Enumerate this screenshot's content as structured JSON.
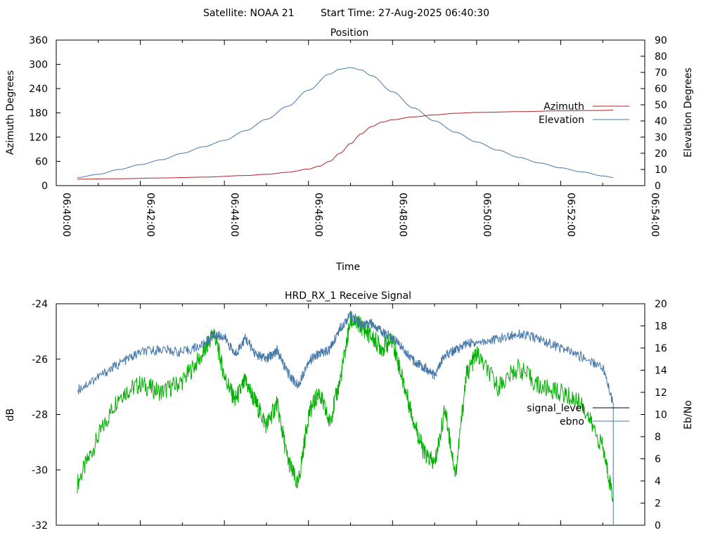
{
  "header": {
    "satellite_label": "Satellite: NOAA 21",
    "start_time_label": "Start Time: 27-Aug-2025 06:40:30"
  },
  "colors": {
    "azimuth": "#b22222",
    "elevation": "#4477aa",
    "signal_level": "#00b000",
    "ebno": "#4477aa",
    "legend_signal": "#000000"
  },
  "chart_data": [
    {
      "type": "line",
      "title": "Position",
      "xlabel": "Time",
      "ylabel": "Azimuth Degrees",
      "y2label": "Elevation Degrees",
      "x_ticks": [
        "06:40:00",
        "06:42:00",
        "06:44:00",
        "06:46:00",
        "06:48:00",
        "06:50:00",
        "06:52:00",
        "06:54:00"
      ],
      "xlim": [
        "06:40:00",
        "06:54:00"
      ],
      "ylim": [
        0,
        360
      ],
      "y_ticks": [
        0,
        60,
        120,
        180,
        240,
        300,
        360
      ],
      "y2lim": [
        0,
        90
      ],
      "y2_ticks": [
        0,
        10,
        20,
        30,
        40,
        50,
        60,
        70,
        80,
        90
      ],
      "legend_position": "right",
      "series": [
        {
          "name": "Azimuth",
          "axis": "y",
          "x": [
            "06:40:30",
            "06:41:30",
            "06:42:30",
            "06:43:30",
            "06:44:30",
            "06:45:00",
            "06:45:30",
            "06:46:00",
            "06:46:15",
            "06:46:30",
            "06:46:45",
            "06:47:00",
            "06:47:15",
            "06:47:30",
            "06:47:45",
            "06:48:00",
            "06:48:30",
            "06:49:00",
            "06:49:30",
            "06:50:00",
            "06:51:00",
            "06:52:00",
            "06:53:00",
            "06:53:15"
          ],
          "y": [
            16,
            17,
            19,
            21,
            25,
            28,
            33,
            41,
            48,
            60,
            80,
            104,
            128,
            146,
            157,
            163,
            170,
            175,
            179,
            181,
            183,
            185,
            186,
            187
          ]
        },
        {
          "name": "Elevation",
          "axis": "y2",
          "x": [
            "06:40:30",
            "06:41:00",
            "06:41:30",
            "06:42:00",
            "06:42:30",
            "06:43:00",
            "06:43:30",
            "06:44:00",
            "06:44:30",
            "06:45:00",
            "06:45:30",
            "06:46:00",
            "06:46:30",
            "06:46:45",
            "06:47:00",
            "06:47:15",
            "06:47:30",
            "06:48:00",
            "06:48:30",
            "06:49:00",
            "06:49:30",
            "06:50:00",
            "06:50:30",
            "06:51:00",
            "06:51:30",
            "06:52:00",
            "06:52:30",
            "06:53:00",
            "06:53:15"
          ],
          "y": [
            5,
            7,
            10,
            13,
            16,
            20,
            24,
            28,
            34,
            41,
            49,
            59,
            69,
            72,
            73,
            71.5,
            68,
            58,
            48,
            40,
            33,
            27,
            22,
            17.5,
            14,
            11,
            8.5,
            6,
            5
          ]
        }
      ]
    },
    {
      "type": "line",
      "title": "HRD_RX_1 Receive Signal",
      "xlabel": "",
      "ylabel": "dB",
      "y2label": "Eb/No",
      "ylim": [
        -32,
        -24
      ],
      "y_ticks": [
        -32,
        -30,
        -28,
        -26,
        -24
      ],
      "y2lim": [
        0,
        20
      ],
      "y2_ticks": [
        0,
        2,
        4,
        6,
        8,
        10,
        12,
        14,
        16,
        18,
        20
      ],
      "xlim": [
        "06:40:00",
        "06:54:00"
      ],
      "legend_position": "right",
      "series": [
        {
          "name": "signal_level",
          "axis": "y",
          "x": [
            "06:40:30",
            "06:41:00",
            "06:41:30",
            "06:42:00",
            "06:42:30",
            "06:43:00",
            "06:43:30",
            "06:43:45",
            "06:44:00",
            "06:44:15",
            "06:44:30",
            "06:44:45",
            "06:45:00",
            "06:45:15",
            "06:45:30",
            "06:45:45",
            "06:46:00",
            "06:46:15",
            "06:46:30",
            "06:46:45",
            "06:47:00",
            "06:47:15",
            "06:47:30",
            "06:47:45",
            "06:48:00",
            "06:48:15",
            "06:48:30",
            "06:48:45",
            "06:49:00",
            "06:49:15",
            "06:49:30",
            "06:49:45",
            "06:50:00",
            "06:50:30",
            "06:51:00",
            "06:51:30",
            "06:52:00",
            "06:52:30",
            "06:53:00",
            "06:53:15"
          ],
          "y": [
            -30.5,
            -28.8,
            -27.3,
            -26.9,
            -27.2,
            -26.8,
            -25.8,
            -25.0,
            -26.6,
            -27.5,
            -26.8,
            -27.6,
            -28.4,
            -27.6,
            -29.6,
            -30.6,
            -28.0,
            -27.2,
            -28.3,
            -26.8,
            -24.6,
            -24.8,
            -25.2,
            -25.6,
            -25.3,
            -26.8,
            -28.2,
            -29.4,
            -29.8,
            -27.8,
            -30.2,
            -26.6,
            -25.8,
            -27.0,
            -26.3,
            -27.0,
            -27.2,
            -27.6,
            -29.2,
            -31.0
          ]
        },
        {
          "name": "ebno",
          "axis": "y2",
          "x": [
            "06:40:30",
            "06:41:00",
            "06:41:30",
            "06:42:00",
            "06:42:30",
            "06:43:00",
            "06:43:30",
            "06:43:45",
            "06:44:00",
            "06:44:15",
            "06:44:30",
            "06:44:45",
            "06:45:00",
            "06:45:15",
            "06:45:30",
            "06:45:45",
            "06:46:00",
            "06:46:15",
            "06:46:30",
            "06:46:45",
            "06:47:00",
            "06:47:15",
            "06:47:30",
            "06:47:45",
            "06:48:00",
            "06:48:15",
            "06:48:30",
            "06:48:45",
            "06:49:00",
            "06:49:15",
            "06:49:30",
            "06:49:45",
            "06:50:00",
            "06:50:30",
            "06:51:00",
            "06:51:30",
            "06:52:00",
            "06:52:30",
            "06:53:00",
            "06:53:15"
          ],
          "y": [
            12.2,
            13.4,
            14.6,
            15.6,
            15.9,
            15.6,
            16.3,
            17.2,
            17.0,
            15.4,
            16.9,
            15.4,
            15.0,
            15.8,
            13.8,
            12.6,
            14.8,
            15.5,
            15.8,
            17.8,
            19.0,
            18.0,
            18.2,
            17.5,
            16.9,
            16.0,
            14.8,
            14.3,
            13.5,
            15.4,
            15.8,
            16.4,
            16.5,
            16.8,
            17.3,
            16.8,
            16.0,
            15.2,
            14.3,
            11.0
          ]
        }
      ]
    }
  ]
}
